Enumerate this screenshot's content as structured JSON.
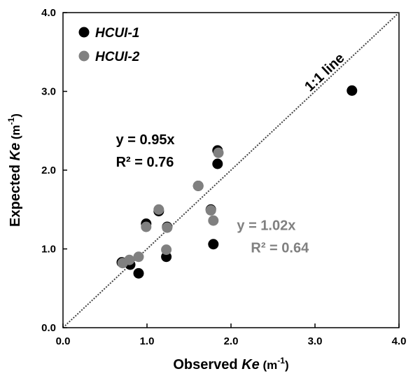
{
  "chart_data": {
    "type": "scatter",
    "xlabel": {
      "pre": "Observed ",
      "var": "Ke",
      "unit_pre": " (m",
      "unit_sup": "-1",
      "unit_post": ")"
    },
    "ylabel": {
      "pre": "Expected ",
      "var": "Ke",
      "unit_pre": " (m",
      "unit_sup": "-1",
      "unit_post": ")"
    },
    "xlim": [
      0,
      4
    ],
    "ylim": [
      0,
      4
    ],
    "x_ticks": [
      "0.0",
      "1.0",
      "2.0",
      "3.0",
      "4.0"
    ],
    "y_ticks": [
      "0.0",
      "1.0",
      "2.0",
      "3.0",
      "4.0"
    ],
    "grid": false,
    "legend_position": "top-left",
    "series": [
      {
        "name": "HCUI-1",
        "color": "#000000",
        "points": [
          [
            0.7,
            0.83
          ],
          [
            0.8,
            0.8
          ],
          [
            0.9,
            0.69
          ],
          [
            0.99,
            1.32
          ],
          [
            1.14,
            1.48
          ],
          [
            1.23,
            0.9
          ],
          [
            1.24,
            1.28
          ],
          [
            1.61,
            1.8
          ],
          [
            1.76,
            1.5
          ],
          [
            1.79,
            1.06
          ],
          [
            1.84,
            2.08
          ],
          [
            1.84,
            2.25
          ],
          [
            3.44,
            3.01
          ]
        ]
      },
      {
        "name": "HCUI-2",
        "color": "#808080",
        "points": [
          [
            0.71,
            0.82
          ],
          [
            0.79,
            0.86
          ],
          [
            0.9,
            0.9
          ],
          [
            0.99,
            1.28
          ],
          [
            1.14,
            1.5
          ],
          [
            1.23,
            0.99
          ],
          [
            1.24,
            1.27
          ],
          [
            1.61,
            1.8
          ],
          [
            1.76,
            1.49
          ],
          [
            1.79,
            1.36
          ],
          [
            1.85,
            2.22
          ]
        ]
      }
    ],
    "reference_line": {
      "label": "1:1 line",
      "from": [
        0,
        0
      ],
      "to": [
        4,
        4
      ],
      "style": "dotted"
    },
    "annotations": [
      {
        "eq": "y = 0.95x",
        "r2": "R² = 0.76",
        "color": "#000000",
        "x": 0.63,
        "y": 2.33
      },
      {
        "eq": "y = 1.02x",
        "r2": "R² = 0.64",
        "color": "#808080",
        "x": 2.07,
        "y": 1.24
      }
    ]
  }
}
